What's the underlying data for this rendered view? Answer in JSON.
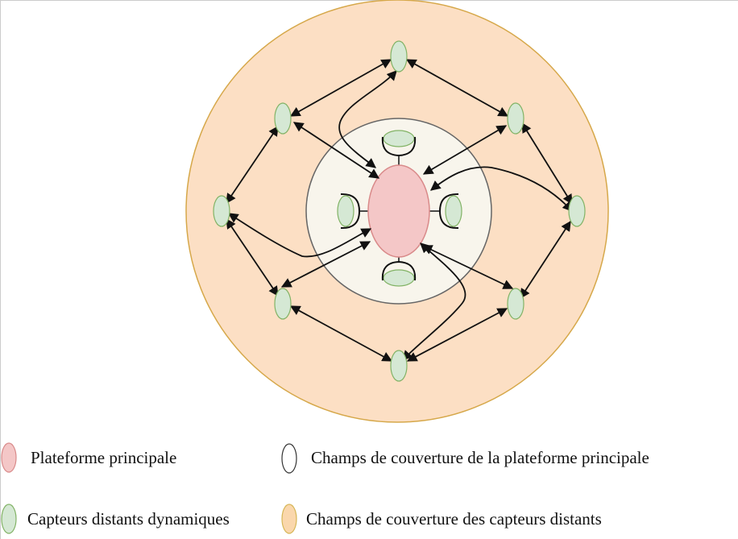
{
  "legend": [
    {
      "label": "Plateforme principale",
      "color": "#f4c7c7",
      "stroke": "#d98a8a"
    },
    {
      "label": "Champs de couverture de la plateforme principale",
      "color": "#ffffff",
      "stroke": "#333333"
    },
    {
      "label": "Capteurs distants dynamiques",
      "color": "#d5e8d4",
      "stroke": "#82b366"
    },
    {
      "label": "Champs de couverture des capteurs distants",
      "color": "#fad7ac",
      "stroke": "#d6b656"
    }
  ],
  "colors": {
    "outer_field_fill": "#fcdfc4",
    "outer_field_stroke": "#d6a84a",
    "inner_field_fill": "#f8f5ec",
    "inner_field_stroke": "#666666",
    "platform_fill": "#f4c7c7",
    "platform_stroke": "#d98a8a",
    "sensor_fill": "#d5e8d4",
    "sensor_stroke": "#82b366",
    "arrow": "#111111"
  }
}
